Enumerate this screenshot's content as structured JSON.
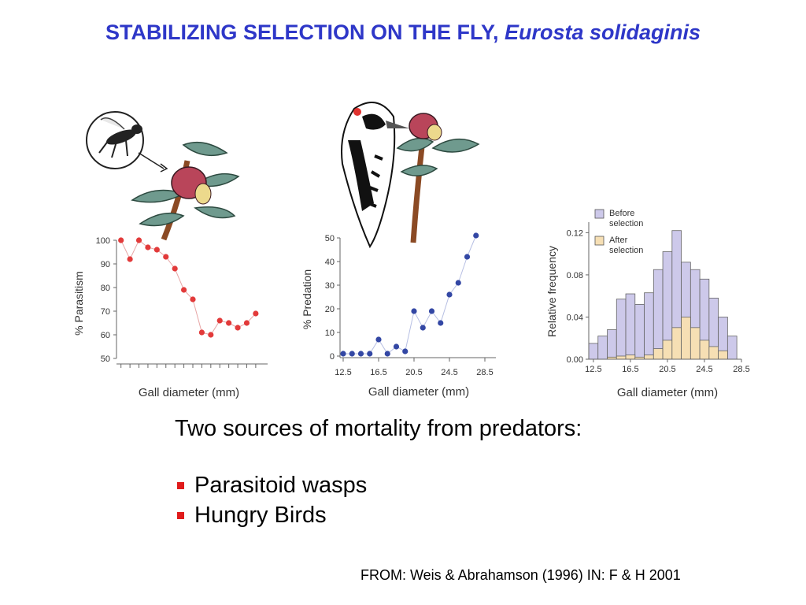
{
  "slide": {
    "title_main": "STABILIZING SELECTION ON THE FLY, ",
    "title_species": "Eurosta solidaginis",
    "headline": "Two sources of mortality from predators:",
    "bullets": [
      "Parasitoid wasps",
      "Hungry Birds"
    ],
    "source": "FROM: Weis & Abrahamson (1996) IN: F & H 2001",
    "colors": {
      "title": "#2e37c8",
      "bullet": "#e01b1b"
    }
  },
  "illustrations": [
    {
      "name": "wasp-on-goldenrod-gall",
      "icon": "wasp-gall-icon"
    },
    {
      "name": "woodpecker-on-goldenrod-gall",
      "icon": "woodpecker-gall-icon"
    }
  ],
  "chart_data": [
    {
      "type": "line",
      "ylabel": "% Parasitism",
      "xlabel": "Gall diameter (mm)",
      "ylim": [
        50,
        100
      ],
      "yticks": [
        "100",
        "90",
        "80",
        "70",
        "60",
        "50"
      ],
      "ytick_values": [
        100,
        90,
        80,
        70,
        60,
        50
      ],
      "xlim": [
        12,
        29
      ],
      "x": [
        12.5,
        13.5,
        14.5,
        15.5,
        16.5,
        17.5,
        18.5,
        19.5,
        20.5,
        21.5,
        22.5,
        23.5,
        24.5,
        25.5,
        26.5,
        27.5
      ],
      "values": [
        100,
        92,
        100,
        97,
        96,
        93,
        88,
        79,
        75,
        61,
        60,
        66,
        65,
        63,
        65,
        69
      ],
      "color": "#e23a3a"
    },
    {
      "type": "line",
      "ylabel": "% Predation",
      "xlabel": "Gall diameter (mm)",
      "ylim": [
        0,
        50
      ],
      "yticks": [
        "50",
        "40",
        "30",
        "20",
        "10",
        "0"
      ],
      "ytick_values": [
        50,
        40,
        30,
        20,
        10,
        0
      ],
      "xticks": [
        "12.5",
        "16.5",
        "20.5",
        "24.5",
        "28.5"
      ],
      "xtick_values": [
        12.5,
        16.5,
        20.5,
        24.5,
        28.5
      ],
      "xlim": [
        12.5,
        28.5
      ],
      "x": [
        12.5,
        13.5,
        14.5,
        15.5,
        16.5,
        17.5,
        18.5,
        19.5,
        20.5,
        21.5,
        22.5,
        23.5,
        24.5,
        25.5,
        26.5,
        27.5
      ],
      "values": [
        1,
        1,
        1,
        1,
        7,
        1,
        4,
        2,
        19,
        12,
        19,
        14,
        26,
        31,
        42,
        51
      ],
      "color": "#3347a4"
    },
    {
      "type": "bar",
      "ylabel": "Relative frequency",
      "xlabel": "Gall diameter (mm)",
      "ylim": [
        0,
        0.13
      ],
      "yticks": [
        "0.12",
        "0.08",
        "0.04",
        "0.00"
      ],
      "ytick_values": [
        0.12,
        0.08,
        0.04,
        0.0
      ],
      "xticks": [
        "12.5",
        "16.5",
        "20.5",
        "24.5",
        "28.5"
      ],
      "xtick_values": [
        12.5,
        16.5,
        20.5,
        24.5,
        28.5
      ],
      "xlim": [
        12.0,
        28.5
      ],
      "bin_start": 12.0,
      "bin_width": 1.0,
      "legend": "top-left",
      "series": [
        {
          "name": "Before selection",
          "color": "#cdc9ea",
          "values": [
            0.015,
            0.022,
            0.028,
            0.057,
            0.062,
            0.052,
            0.063,
            0.085,
            0.102,
            0.122,
            0.092,
            0.085,
            0.076,
            0.058,
            0.04,
            0.022
          ]
        },
        {
          "name": "After selection",
          "color": "#f6dfb4",
          "values": [
            0.0,
            0.0,
            0.002,
            0.003,
            0.004,
            0.002,
            0.004,
            0.01,
            0.018,
            0.03,
            0.04,
            0.03,
            0.018,
            0.012,
            0.008,
            0.0
          ]
        }
      ]
    }
  ]
}
